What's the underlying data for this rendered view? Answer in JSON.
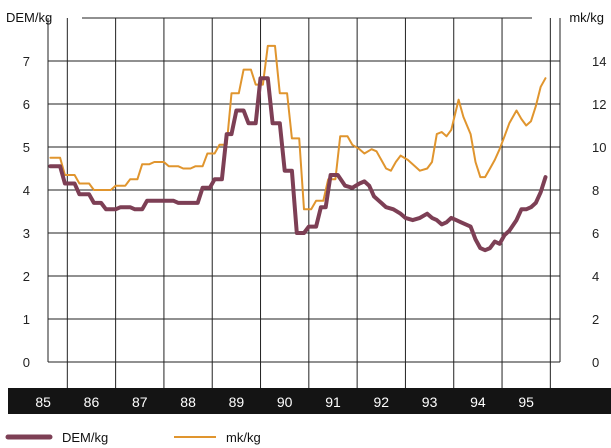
{
  "chart_data": {
    "type": "line",
    "left_axis": {
      "label": "DEM/kg",
      "range": [
        0,
        8
      ],
      "ticks": [
        "0",
        "1",
        "2",
        "3",
        "4",
        "5",
        "6",
        "7"
      ]
    },
    "right_axis": {
      "label": "mk/kg",
      "range": [
        0,
        16
      ],
      "ticks": [
        "0",
        "2",
        "4",
        "6",
        "8",
        "10",
        "12",
        "14"
      ]
    },
    "x_labels": [
      "85",
      "86",
      "87",
      "88",
      "89",
      "90",
      "91",
      "92",
      "93",
      "94",
      "95"
    ],
    "x_range": [
      1984.6,
      1995.2
    ],
    "grid": true,
    "legend": "bottom",
    "series": [
      {
        "name": "DEM/kg",
        "axis": "left",
        "color": "#7d3f55",
        "points": [
          [
            1984.65,
            4.55
          ],
          [
            1984.85,
            4.55
          ],
          [
            1984.95,
            4.15
          ],
          [
            1985.15,
            4.15
          ],
          [
            1985.25,
            3.9
          ],
          [
            1985.45,
            3.9
          ],
          [
            1985.55,
            3.7
          ],
          [
            1985.7,
            3.7
          ],
          [
            1985.8,
            3.55
          ],
          [
            1986.0,
            3.55
          ],
          [
            1986.1,
            3.6
          ],
          [
            1986.3,
            3.6
          ],
          [
            1986.4,
            3.55
          ],
          [
            1986.55,
            3.55
          ],
          [
            1986.65,
            3.75
          ],
          [
            1987.2,
            3.75
          ],
          [
            1987.3,
            3.7
          ],
          [
            1987.7,
            3.7
          ],
          [
            1987.8,
            4.05
          ],
          [
            1987.95,
            4.05
          ],
          [
            1988.05,
            4.25
          ],
          [
            1988.2,
            4.25
          ],
          [
            1988.3,
            5.3
          ],
          [
            1988.4,
            5.3
          ],
          [
            1988.5,
            5.85
          ],
          [
            1988.65,
            5.85
          ],
          [
            1988.75,
            5.55
          ],
          [
            1988.9,
            5.55
          ],
          [
            1989.0,
            6.6
          ],
          [
            1989.15,
            6.6
          ],
          [
            1989.25,
            5.55
          ],
          [
            1989.4,
            5.55
          ],
          [
            1989.5,
            4.45
          ],
          [
            1989.65,
            4.45
          ],
          [
            1989.75,
            3.0
          ],
          [
            1989.9,
            3.0
          ],
          [
            1990.0,
            3.15
          ],
          [
            1990.15,
            3.15
          ],
          [
            1990.25,
            3.6
          ],
          [
            1990.35,
            3.6
          ],
          [
            1990.45,
            4.35
          ],
          [
            1990.6,
            4.35
          ],
          [
            1990.75,
            4.1
          ],
          [
            1990.9,
            4.05
          ],
          [
            1991.05,
            4.15
          ],
          [
            1991.15,
            4.2
          ],
          [
            1991.25,
            4.1
          ],
          [
            1991.35,
            3.85
          ],
          [
            1991.5,
            3.7
          ],
          [
            1991.6,
            3.6
          ],
          [
            1991.75,
            3.55
          ],
          [
            1991.9,
            3.45
          ],
          [
            1992.0,
            3.35
          ],
          [
            1992.15,
            3.3
          ],
          [
            1992.3,
            3.35
          ],
          [
            1992.45,
            3.45
          ],
          [
            1992.55,
            3.35
          ],
          [
            1992.65,
            3.3
          ],
          [
            1992.75,
            3.2
          ],
          [
            1992.85,
            3.25
          ],
          [
            1992.95,
            3.35
          ],
          [
            1993.05,
            3.3
          ],
          [
            1993.15,
            3.25
          ],
          [
            1993.35,
            3.15
          ],
          [
            1993.45,
            2.85
          ],
          [
            1993.55,
            2.65
          ],
          [
            1993.65,
            2.6
          ],
          [
            1993.75,
            2.65
          ],
          [
            1993.85,
            2.8
          ],
          [
            1993.95,
            2.75
          ],
          [
            1994.05,
            2.95
          ],
          [
            1994.15,
            3.05
          ],
          [
            1994.3,
            3.3
          ],
          [
            1994.4,
            3.55
          ],
          [
            1994.5,
            3.55
          ],
          [
            1994.6,
            3.6
          ],
          [
            1994.7,
            3.7
          ],
          [
            1994.8,
            3.95
          ],
          [
            1994.9,
            4.3
          ]
        ]
      },
      {
        "name": "mk/kg",
        "axis": "right",
        "color": "#e0952e",
        "points": [
          [
            1984.65,
            9.5
          ],
          [
            1984.85,
            9.5
          ],
          [
            1984.95,
            8.7
          ],
          [
            1985.15,
            8.7
          ],
          [
            1985.25,
            8.3
          ],
          [
            1985.45,
            8.3
          ],
          [
            1985.55,
            8.0
          ],
          [
            1985.9,
            8.0
          ],
          [
            1986.0,
            8.2
          ],
          [
            1986.2,
            8.2
          ],
          [
            1986.3,
            8.5
          ],
          [
            1986.45,
            8.5
          ],
          [
            1986.55,
            9.2
          ],
          [
            1986.7,
            9.2
          ],
          [
            1986.8,
            9.3
          ],
          [
            1987.0,
            9.3
          ],
          [
            1987.1,
            9.1
          ],
          [
            1987.3,
            9.1
          ],
          [
            1987.4,
            9.0
          ],
          [
            1987.55,
            9.0
          ],
          [
            1987.65,
            9.1
          ],
          [
            1987.8,
            9.1
          ],
          [
            1987.9,
            9.7
          ],
          [
            1988.05,
            9.7
          ],
          [
            1988.15,
            10.1
          ],
          [
            1988.3,
            10.1
          ],
          [
            1988.4,
            12.5
          ],
          [
            1988.55,
            12.5
          ],
          [
            1988.65,
            13.6
          ],
          [
            1988.8,
            13.6
          ],
          [
            1988.9,
            12.9
          ],
          [
            1989.05,
            12.9
          ],
          [
            1989.15,
            14.7
          ],
          [
            1989.3,
            14.7
          ],
          [
            1989.4,
            12.5
          ],
          [
            1989.55,
            12.5
          ],
          [
            1989.65,
            10.4
          ],
          [
            1989.8,
            10.4
          ],
          [
            1989.9,
            7.1
          ],
          [
            1990.05,
            7.1
          ],
          [
            1990.15,
            7.5
          ],
          [
            1990.3,
            7.5
          ],
          [
            1990.4,
            8.5
          ],
          [
            1990.55,
            8.5
          ],
          [
            1990.65,
            10.5
          ],
          [
            1990.8,
            10.5
          ],
          [
            1990.9,
            10.1
          ],
          [
            1991.05,
            9.9
          ],
          [
            1991.15,
            9.7
          ],
          [
            1991.3,
            9.9
          ],
          [
            1991.4,
            9.8
          ],
          [
            1991.5,
            9.4
          ],
          [
            1991.6,
            9.0
          ],
          [
            1991.7,
            8.9
          ],
          [
            1991.8,
            9.3
          ],
          [
            1991.9,
            9.6
          ],
          [
            1992.05,
            9.4
          ],
          [
            1992.15,
            9.2
          ],
          [
            1992.3,
            8.9
          ],
          [
            1992.45,
            9.0
          ],
          [
            1992.55,
            9.3
          ],
          [
            1992.65,
            10.6
          ],
          [
            1992.75,
            10.7
          ],
          [
            1992.85,
            10.5
          ],
          [
            1992.95,
            10.8
          ],
          [
            1993.1,
            12.2
          ],
          [
            1993.2,
            11.4
          ],
          [
            1993.35,
            10.6
          ],
          [
            1993.45,
            9.3
          ],
          [
            1993.55,
            8.6
          ],
          [
            1993.65,
            8.6
          ],
          [
            1993.75,
            9.0
          ],
          [
            1993.85,
            9.4
          ],
          [
            1993.95,
            9.9
          ],
          [
            1994.05,
            10.5
          ],
          [
            1994.15,
            11.1
          ],
          [
            1994.3,
            11.7
          ],
          [
            1994.4,
            11.3
          ],
          [
            1994.5,
            11.0
          ],
          [
            1994.6,
            11.2
          ],
          [
            1994.7,
            11.9
          ],
          [
            1994.8,
            12.8
          ],
          [
            1994.9,
            13.2
          ]
        ]
      }
    ]
  }
}
